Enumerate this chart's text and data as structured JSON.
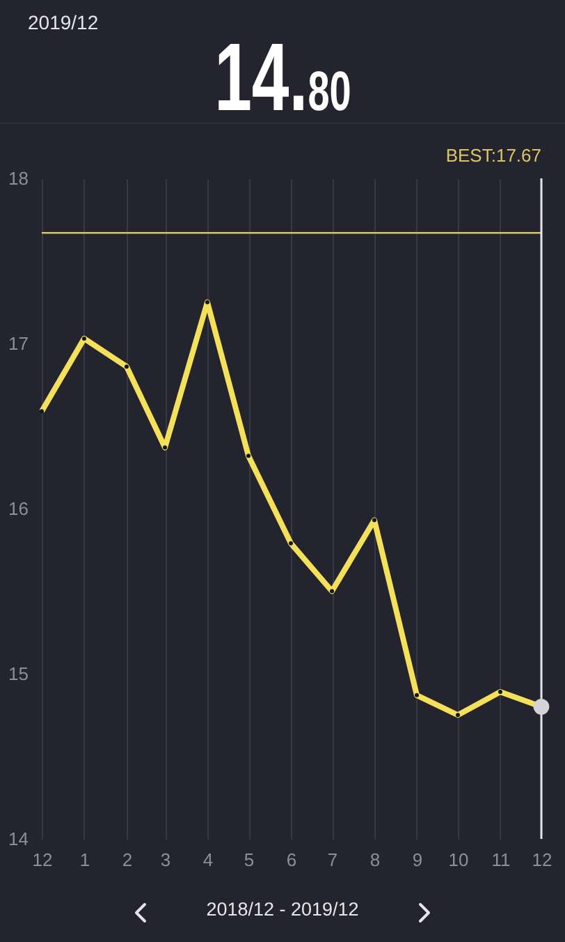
{
  "chart_data": {
    "type": "line",
    "title": "14.80",
    "subtitle": "2019/12",
    "x": [
      "2018-12",
      "2019-01",
      "2019-02",
      "2019-03",
      "2019-04",
      "2019-05",
      "2019-06",
      "2019-07",
      "2019-08",
      "2019-09",
      "2019-10",
      "2019-11",
      "2019-12"
    ],
    "xlim": [
      "2018-12",
      "2019-12"
    ],
    "xticks": [
      {
        "value": "2018-12",
        "label": "12"
      },
      {
        "value": "2019-01",
        "label": "1"
      },
      {
        "value": "2019-02",
        "label": "2"
      },
      {
        "value": "2019-03",
        "label": "3"
      },
      {
        "value": "2019-04",
        "label": "4"
      },
      {
        "value": "2019-05",
        "label": "5"
      },
      {
        "value": "2019-06",
        "label": "6"
      },
      {
        "value": "2019-07",
        "label": "7"
      },
      {
        "value": "2019-08",
        "label": "8"
      },
      {
        "value": "2019-09",
        "label": "9"
      },
      {
        "value": "2019-10",
        "label": "10"
      },
      {
        "value": "2019-11",
        "label": "11"
      },
      {
        "value": "2019-12",
        "label": "12"
      }
    ],
    "ylim": [
      14,
      18
    ],
    "yticks": [
      14,
      15,
      16,
      17,
      18
    ],
    "series": [
      {
        "color": "#f5e05a",
        "values": [
          16.59,
          17.03,
          16.86,
          16.37,
          17.25,
          16.32,
          15.79,
          15.5,
          15.93,
          14.87,
          14.75,
          14.89,
          14.8
        ]
      },
      {
        "type": "scatter",
        "color": "#d4d4d8",
        "x": [
          "2019-12"
        ],
        "values": [
          14.8
        ]
      }
    ],
    "marker": "circle",
    "grid": "x",
    "ref_lines": [
      {
        "axis": "y",
        "value": 17.67,
        "label": "BEST:17.67",
        "color": "#dcc55e"
      },
      {
        "axis": "x",
        "value": "2019-12",
        "color": "#e2e2e8"
      }
    ],
    "annotations": [
      "2018/12 - 2019/12"
    ]
  }
}
